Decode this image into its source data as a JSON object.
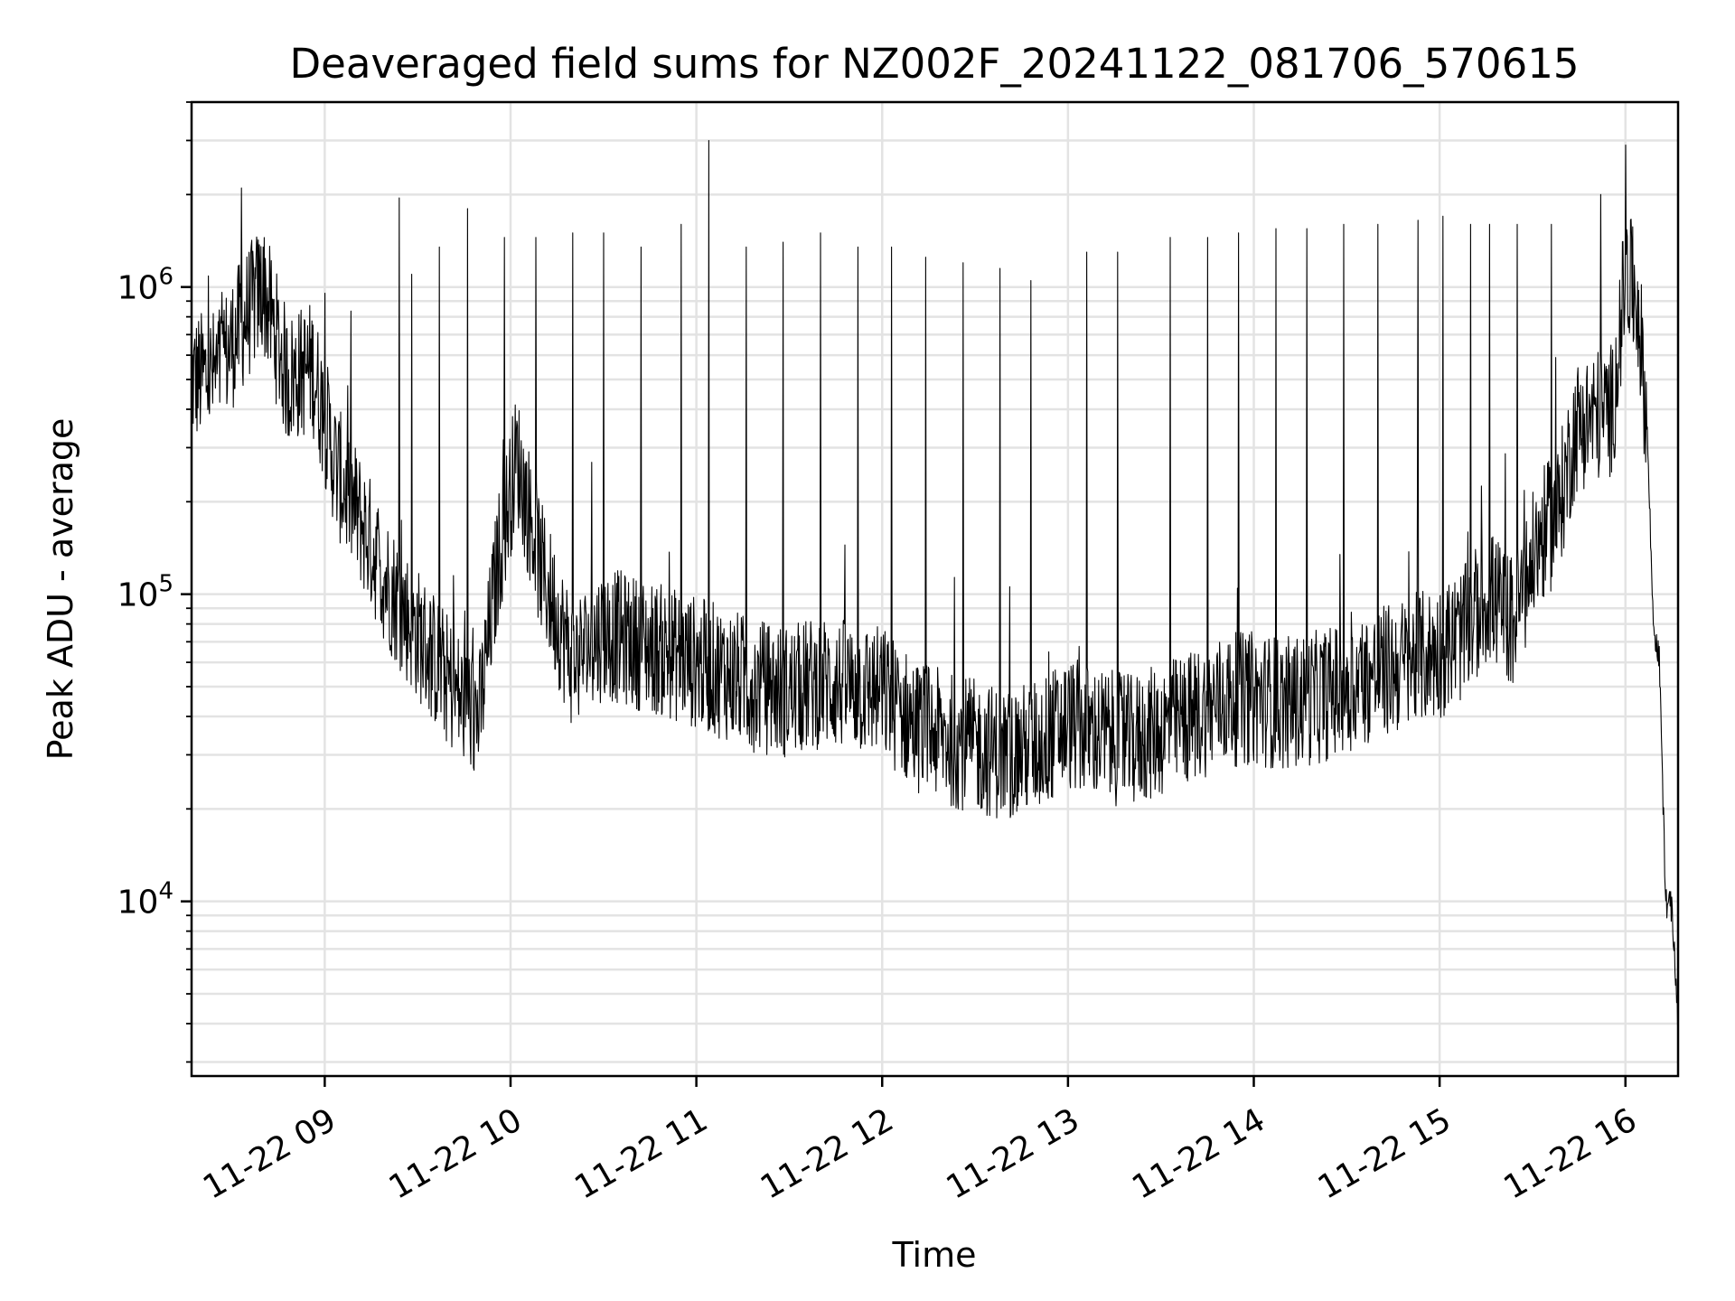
{
  "chart_data": {
    "type": "line",
    "title": "Deaveraged field sums for NZ002F_20241122_081706_570615",
    "xlabel": "Time",
    "ylabel": "Peak ADU - average",
    "x_tick_labels": [
      "11-22 09",
      "11-22 10",
      "11-22 11",
      "11-22 12",
      "11-22 13",
      "11-22 14",
      "11-22 15",
      "11-22 16"
    ],
    "x_tick_values": [
      "2024-11-22 09:00",
      "2024-11-22 10:00",
      "2024-11-22 11:00",
      "2024-11-22 12:00",
      "2024-11-22 13:00",
      "2024-11-22 14:00",
      "2024-11-22 15:00",
      "2024-11-22 16:00"
    ],
    "xlim": [
      "2024-11-22 08:17",
      "2024-11-22 16:17"
    ],
    "yscale": "log",
    "ylim": [
      2700,
      4000000
    ],
    "y_tick_labels": [
      {
        "base": "10",
        "exp": "4",
        "value": 10000
      },
      {
        "base": "10",
        "exp": "5",
        "value": 100000
      },
      {
        "base": "10",
        "exp": "6",
        "value": 1000000
      }
    ],
    "grid": true,
    "line_color": "#000000",
    "series": [
      {
        "x": [
          "2024-11-22 08:17",
          "2024-11-22 08:25",
          "2024-11-22 08:33",
          "2024-11-22 08:40",
          "2024-11-22 08:48",
          "2024-11-22 08:56",
          "2024-11-22 09:04",
          "2024-11-22 09:12",
          "2024-11-22 09:20",
          "2024-11-22 09:28",
          "2024-11-22 09:36",
          "2024-11-22 09:44",
          "2024-11-22 09:50",
          "2024-11-22 09:56",
          "2024-11-22 10:02",
          "2024-11-22 10:10",
          "2024-11-22 10:20",
          "2024-11-22 10:30",
          "2024-11-22 10:40",
          "2024-11-22 10:50",
          "2024-11-22 11:00",
          "2024-11-22 11:10",
          "2024-11-22 11:20",
          "2024-11-22 11:30",
          "2024-11-22 11:40",
          "2024-11-22 11:50",
          "2024-11-22 12:00",
          "2024-11-22 12:10",
          "2024-11-22 12:20",
          "2024-11-22 12:30",
          "2024-11-22 12:40",
          "2024-11-22 12:50",
          "2024-11-22 13:00",
          "2024-11-22 13:10",
          "2024-11-22 13:20",
          "2024-11-22 13:30",
          "2024-11-22 13:40",
          "2024-11-22 13:50",
          "2024-11-22 14:00",
          "2024-11-22 14:10",
          "2024-11-22 14:20",
          "2024-11-22 14:30",
          "2024-11-22 14:40",
          "2024-11-22 14:50",
          "2024-11-22 15:00",
          "2024-11-22 15:08",
          "2024-11-22 15:16",
          "2024-11-22 15:24",
          "2024-11-22 15:32",
          "2024-11-22 15:38",
          "2024-11-22 15:44",
          "2024-11-22 15:50",
          "2024-11-22 15:56",
          "2024-11-22 16:00",
          "2024-11-22 16:04",
          "2024-11-22 16:07",
          "2024-11-22 16:09",
          "2024-11-22 16:11",
          "2024-11-22 16:13",
          "2024-11-22 16:15",
          "2024-11-22 16:17"
        ],
        "y": [
          500000,
          520000,
          750000,
          1000000,
          500000,
          550000,
          250000,
          170000,
          110000,
          80000,
          60000,
          45000,
          40000,
          130000,
          280000,
          120000,
          60000,
          75000,
          70000,
          65000,
          60000,
          55000,
          50000,
          48000,
          52000,
          50000,
          48000,
          38000,
          34000,
          32000,
          30000,
          32000,
          38000,
          35000,
          33000,
          36000,
          40000,
          45000,
          46000,
          44000,
          46000,
          50000,
          55000,
          60000,
          65000,
          75000,
          100000,
          80000,
          150000,
          180000,
          350000,
          380000,
          400000,
          1100000,
          900000,
          350000,
          80000,
          60000,
          10000,
          9500,
          4000
        ]
      }
    ],
    "spikes": [
      {
        "x": "2024-11-22 08:33",
        "y": 2100000
      },
      {
        "x": "2024-11-22 08:40",
        "y": 1350000
      },
      {
        "x": "2024-11-22 09:24",
        "y": 1950000
      },
      {
        "x": "2024-11-22 09:28",
        "y": 1100000
      },
      {
        "x": "2024-11-22 09:37",
        "y": 1350000
      },
      {
        "x": "2024-11-22 09:46",
        "y": 1800000
      },
      {
        "x": "2024-11-22 09:58",
        "y": 1450000
      },
      {
        "x": "2024-11-22 10:08",
        "y": 1450000
      },
      {
        "x": "2024-11-22 10:20",
        "y": 1500000
      },
      {
        "x": "2024-11-22 10:30",
        "y": 1500000
      },
      {
        "x": "2024-11-22 10:42",
        "y": 1350000
      },
      {
        "x": "2024-11-22 10:55",
        "y": 1600000
      },
      {
        "x": "2024-11-22 11:04",
        "y": 3000000
      },
      {
        "x": "2024-11-22 11:16",
        "y": 1350000
      },
      {
        "x": "2024-11-22 11:28",
        "y": 1400000
      },
      {
        "x": "2024-11-22 11:40",
        "y": 1500000
      },
      {
        "x": "2024-11-22 11:52",
        "y": 1350000
      },
      {
        "x": "2024-11-22 12:03",
        "y": 1350000
      },
      {
        "x": "2024-11-22 12:14",
        "y": 1250000
      },
      {
        "x": "2024-11-22 12:26",
        "y": 1200000
      },
      {
        "x": "2024-11-22 12:38",
        "y": 1150000
      },
      {
        "x": "2024-11-22 12:48",
        "y": 1050000
      },
      {
        "x": "2024-11-22 13:06",
        "y": 1300000
      },
      {
        "x": "2024-11-22 13:16",
        "y": 1300000
      },
      {
        "x": "2024-11-22 13:33",
        "y": 1450000
      },
      {
        "x": "2024-11-22 13:45",
        "y": 1450000
      },
      {
        "x": "2024-11-22 13:55",
        "y": 1500000
      },
      {
        "x": "2024-11-22 14:07",
        "y": 1550000
      },
      {
        "x": "2024-11-22 14:17",
        "y": 1550000
      },
      {
        "x": "2024-11-22 14:29",
        "y": 1600000
      },
      {
        "x": "2024-11-22 14:40",
        "y": 1600000
      },
      {
        "x": "2024-11-22 14:53",
        "y": 1650000
      },
      {
        "x": "2024-11-22 15:01",
        "y": 1700000
      },
      {
        "x": "2024-11-22 15:10",
        "y": 1600000
      },
      {
        "x": "2024-11-22 15:16",
        "y": 1600000
      },
      {
        "x": "2024-11-22 15:25",
        "y": 1600000
      },
      {
        "x": "2024-11-22 15:36",
        "y": 1600000
      },
      {
        "x": "2024-11-22 15:52",
        "y": 2000000
      },
      {
        "x": "2024-11-22 16:00",
        "y": 2900000
      }
    ]
  }
}
